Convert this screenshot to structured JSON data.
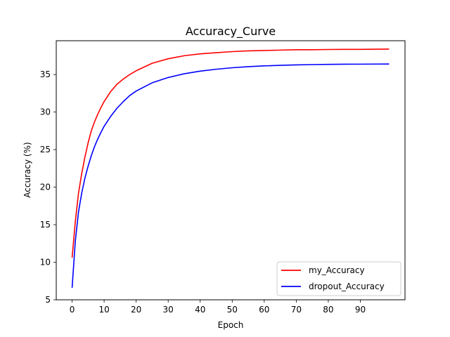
{
  "chart_data": {
    "type": "line",
    "title": "Accuracy_Curve",
    "xlabel": "Epoch",
    "ylabel": "Accuracy (%)",
    "xlim": [
      -4.95,
      103.95
    ],
    "ylim": [
      5,
      39.5
    ],
    "xticks": [
      0,
      10,
      20,
      30,
      40,
      50,
      60,
      70,
      80,
      90
    ],
    "yticks": [
      5,
      10,
      15,
      20,
      25,
      30,
      35
    ],
    "grid": false,
    "legend_position": "lower-right",
    "x": [
      0,
      1,
      2,
      3,
      4,
      5,
      6,
      7,
      8,
      9,
      10,
      12,
      14,
      16,
      18,
      20,
      25,
      30,
      35,
      40,
      45,
      50,
      55,
      60,
      65,
      70,
      75,
      80,
      85,
      90,
      95,
      99
    ],
    "series": [
      {
        "name": "my_Accuracy",
        "color": "#ff0000",
        "values": [
          10.6,
          15.4,
          19.2,
          21.8,
          24.0,
          25.9,
          27.5,
          28.7,
          29.7,
          30.6,
          31.4,
          32.7,
          33.7,
          34.4,
          35.0,
          35.5,
          36.5,
          37.1,
          37.5,
          37.75,
          37.9,
          38.05,
          38.15,
          38.2,
          38.25,
          38.3,
          38.3,
          38.33,
          38.35,
          38.35,
          38.37,
          38.38
        ]
      },
      {
        "name": "dropout_Accuracy",
        "color": "#0000ff",
        "values": [
          6.6,
          12.8,
          16.7,
          19.2,
          21.2,
          22.8,
          24.2,
          25.4,
          26.4,
          27.3,
          28.1,
          29.4,
          30.5,
          31.4,
          32.2,
          32.8,
          33.9,
          34.6,
          35.1,
          35.45,
          35.7,
          35.9,
          36.05,
          36.15,
          36.22,
          36.28,
          36.32,
          36.35,
          36.37,
          36.38,
          36.39,
          36.4
        ]
      }
    ]
  }
}
